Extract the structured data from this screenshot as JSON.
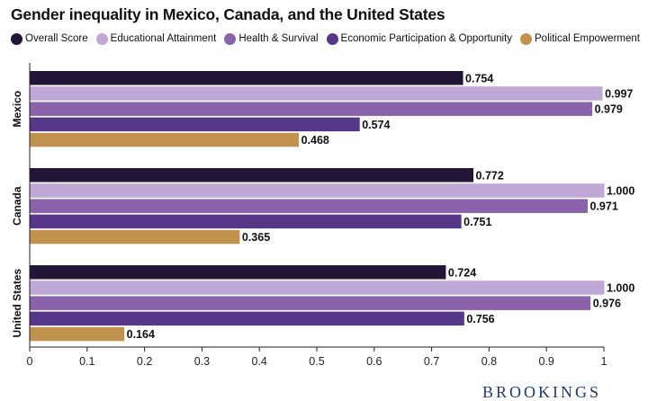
{
  "chart_data": {
    "type": "bar",
    "orientation": "horizontal",
    "title": "Gender inequality in Mexico, Canada, and the United States",
    "categories": [
      "Mexico",
      "Canada",
      "United States"
    ],
    "series": [
      {
        "name": "Overall Score",
        "color": "#231538",
        "values": [
          0.754,
          0.772,
          0.724
        ],
        "labels": [
          "0.754",
          "0.772",
          "0.724"
        ]
      },
      {
        "name": "Educational Attainment",
        "color": "#bfa8d5",
        "values": [
          0.997,
          1.0,
          1.0
        ],
        "labels": [
          "0.997",
          "1.000",
          "1.000"
        ]
      },
      {
        "name": "Health & Survival",
        "color": "#8b63ad",
        "values": [
          0.979,
          0.971,
          0.976
        ],
        "labels": [
          "0.979",
          "0.971",
          "0.976"
        ]
      },
      {
        "name": "Economic Participation & Opportunity",
        "color": "#56378a",
        "values": [
          0.574,
          0.751,
          0.756
        ],
        "labels": [
          "0.574",
          "0.751",
          "0.756"
        ]
      },
      {
        "name": "Political Empowerment",
        "color": "#c0924e",
        "values": [
          0.468,
          0.365,
          0.164
        ],
        "labels": [
          "0.468",
          "0.365",
          "0.164"
        ]
      }
    ],
    "xlim": [
      0,
      1
    ],
    "xticks": [
      "0",
      "0.1",
      "0.2",
      "0.3",
      "0.4",
      "0.5",
      "0.6",
      "0.7",
      "0.8",
      "0.9",
      "1"
    ],
    "legend_position": "top",
    "grid": false
  },
  "branding": {
    "text": "BROOKINGS"
  }
}
